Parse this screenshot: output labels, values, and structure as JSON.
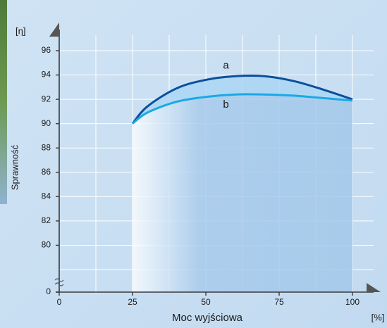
{
  "chart_data": {
    "type": "line",
    "y_unit": "[η]",
    "y_label": "Sprawność",
    "x_label": "Moc wyjściowa",
    "x_unit": "[%]",
    "x": [
      25,
      30,
      40,
      50,
      60,
      70,
      80,
      90,
      100
    ],
    "series": [
      {
        "name": "a",
        "color": "#0b4f9c",
        "values": [
          90,
          91.4,
          92.9,
          93.6,
          93.9,
          93.9,
          93.5,
          92.8,
          92.0
        ]
      },
      {
        "name": "b",
        "color": "#1aa9e6",
        "values": [
          90,
          90.9,
          91.8,
          92.2,
          92.4,
          92.4,
          92.3,
          92.1,
          91.9
        ]
      }
    ],
    "xlim": [
      0,
      100
    ],
    "xticks": [
      0,
      25,
      50,
      75,
      100
    ],
    "minor_xticks": [
      12.5,
      37.5,
      62.5,
      87.5
    ],
    "ylim": [
      78,
      96
    ],
    "yticks": [
      0,
      80,
      82,
      84,
      86,
      88,
      90,
      92,
      94,
      96
    ],
    "minor_yticks": [
      78
    ],
    "axis_break": true,
    "grid": true
  }
}
